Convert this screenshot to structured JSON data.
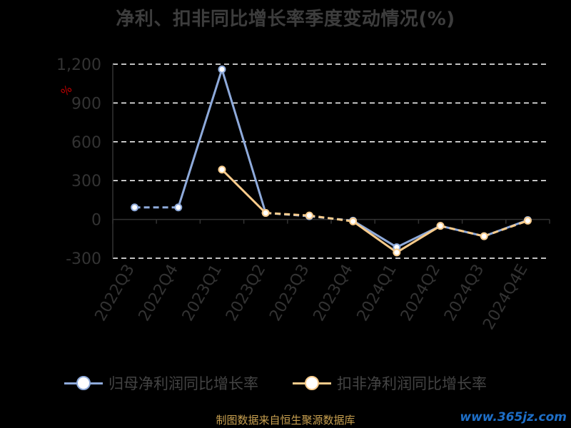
{
  "title": "净利、扣非同比增长率季度变动情况(%)",
  "unit_label": "%",
  "source": "制图数据来自恒生聚源数据库",
  "watermark": "www.365jz.com",
  "colors": {
    "background": "#000000",
    "series1": "#8eaadb",
    "series2": "#f8cb8b",
    "grid": "#ffffff",
    "axis_text": "#333333"
  },
  "legend": [
    {
      "name": "归母净利润同比增长率"
    },
    {
      "name": "扣非净利润同比增长率"
    }
  ],
  "chart_data": {
    "type": "line",
    "categories": [
      "2022Q3",
      "2022Q4",
      "2023Q1",
      "2023Q2",
      "2023Q3",
      "2023Q4",
      "2024Q1",
      "2024Q2",
      "2024Q3",
      "2024Q4E"
    ],
    "ylim": [
      -300,
      1200
    ],
    "yticks": [
      "1,200",
      "900",
      "600",
      "300",
      "0",
      "-300"
    ],
    "grid": true,
    "legend_position": "bottom",
    "series": [
      {
        "name": "归母净利润同比增长率",
        "values": [
          93,
          93,
          1160,
          50,
          25,
          -10,
          -215,
          -50,
          -130,
          -5
        ],
        "dashed_segments": [
          0,
          3,
          4
        ]
      },
      {
        "name": "扣非净利润同比增长率",
        "values": [
          null,
          null,
          385,
          50,
          30,
          -15,
          -255,
          -50,
          -130,
          -10
        ],
        "dashed_segments": [
          3,
          4,
          7,
          8
        ]
      }
    ]
  }
}
